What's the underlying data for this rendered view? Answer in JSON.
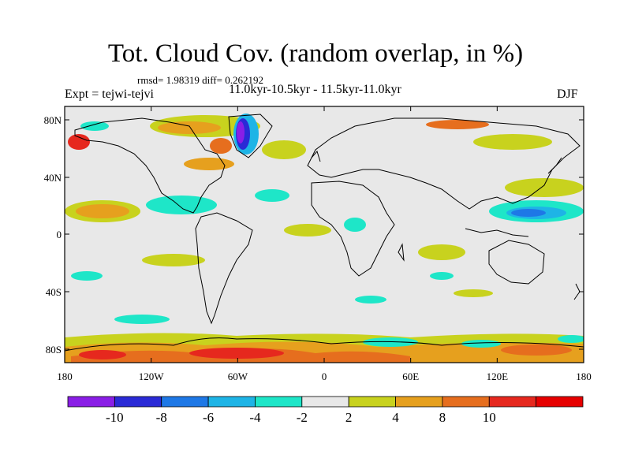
{
  "title": "Tot. Cloud Cov. (random overlap, in %)",
  "stats": "rmsd= 1.98319 diff= 0.262192",
  "experiment": "Expt = tejwi-tejvi",
  "period": "11.0kyr-10.5kyr - 11.5kyr-11.0kyr",
  "season": "DJF",
  "lat_ticks": [
    "80N",
    "40N",
    "0",
    "40S",
    "80S"
  ],
  "lon_ticks": [
    "180",
    "120W",
    "60W",
    "0",
    "60E",
    "120E",
    "180"
  ],
  "colorbar": {
    "colors": [
      "#8a1ee6",
      "#2a2ad6",
      "#1e78e6",
      "#1eb4e6",
      "#1ee6c8",
      "#e8e8e8",
      "#c8d21e",
      "#e6a01e",
      "#e66e1e",
      "#e6281e",
      "#e60000"
    ],
    "labels": [
      "-10",
      "-8",
      "-6",
      "-4",
      "-2",
      "2",
      "4",
      "8",
      "10"
    ]
  },
  "colors": {
    "ocean_background": "#e8e8e8",
    "coastline": "#000000"
  }
}
